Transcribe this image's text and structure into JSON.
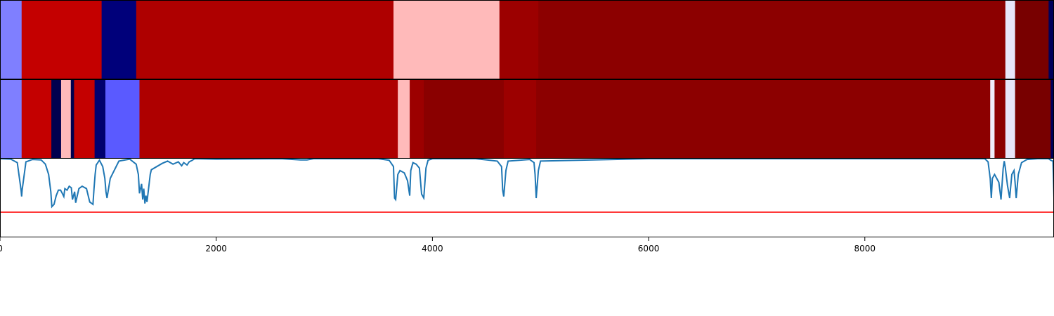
{
  "chart_data": {
    "type": "heatmap",
    "title": "",
    "xlabel": "",
    "ylabel": "",
    "xlim": [
      0,
      9750
    ],
    "xticks": [
      {
        "value": 0,
        "label": "0"
      },
      {
        "value": 2000,
        "label": "2000"
      },
      {
        "value": 4000,
        "label": "4000"
      },
      {
        "value": 6000,
        "label": "6000"
      },
      {
        "value": 8000,
        "label": "8000"
      }
    ],
    "colormap": "seismic",
    "band_1": [
      {
        "start": 0,
        "end": 200,
        "color": "#7f7fff"
      },
      {
        "start": 200,
        "end": 940,
        "color": "#c40000"
      },
      {
        "start": 940,
        "end": 1260,
        "color": "#00007a"
      },
      {
        "start": 1260,
        "end": 3640,
        "color": "#ae0000"
      },
      {
        "start": 3640,
        "end": 4620,
        "color": "#ffbaba"
      },
      {
        "start": 4620,
        "end": 4980,
        "color": "#9c0000"
      },
      {
        "start": 4980,
        "end": 9300,
        "color": "#8c0000"
      },
      {
        "start": 9300,
        "end": 9390,
        "color": "#e8e6fa"
      },
      {
        "start": 9390,
        "end": 9700,
        "color": "#780000"
      },
      {
        "start": 9700,
        "end": 9750,
        "color": "#00005a"
      }
    ],
    "band_2": [
      {
        "start": 0,
        "end": 200,
        "color": "#7f7fff"
      },
      {
        "start": 200,
        "end": 475,
        "color": "#c40000"
      },
      {
        "start": 475,
        "end": 565,
        "color": "#00004e"
      },
      {
        "start": 565,
        "end": 655,
        "color": "#ffbaba"
      },
      {
        "start": 655,
        "end": 685,
        "color": "#00004e"
      },
      {
        "start": 685,
        "end": 875,
        "color": "#c40000"
      },
      {
        "start": 875,
        "end": 975,
        "color": "#00006e"
      },
      {
        "start": 975,
        "end": 1290,
        "color": "#5a5aff"
      },
      {
        "start": 1290,
        "end": 3680,
        "color": "#ae0000"
      },
      {
        "start": 3680,
        "end": 3790,
        "color": "#ffbaba"
      },
      {
        "start": 3790,
        "end": 3920,
        "color": "#9c0000"
      },
      {
        "start": 3920,
        "end": 4660,
        "color": "#8a0000"
      },
      {
        "start": 4660,
        "end": 4960,
        "color": "#9c0000"
      },
      {
        "start": 4960,
        "end": 9160,
        "color": "#8c0000"
      },
      {
        "start": 9160,
        "end": 9200,
        "color": "#f0eefa"
      },
      {
        "start": 9200,
        "end": 9300,
        "color": "#8c0000"
      },
      {
        "start": 9300,
        "end": 9390,
        "color": "#e8e6fa"
      },
      {
        "start": 9390,
        "end": 9720,
        "color": "#780000"
      },
      {
        "start": 9720,
        "end": 9750,
        "color": "#00005a"
      }
    ],
    "line_series": {
      "color": "#1f77b4",
      "ylim": [
        0,
        1
      ],
      "x": [
        0,
        100,
        160,
        195,
        200,
        205,
        240,
        300,
        380,
        420,
        450,
        470,
        480,
        500,
        520,
        540,
        560,
        580,
        590,
        600,
        620,
        640,
        660,
        670,
        690,
        700,
        710,
        730,
        760,
        800,
        830,
        860,
        870,
        880,
        890,
        920,
        950,
        970,
        980,
        990,
        1020,
        1100,
        1200,
        1260,
        1280,
        1290,
        1310,
        1320,
        1330,
        1340,
        1350,
        1360,
        1390,
        1400,
        1500,
        1550,
        1600,
        1650,
        1680,
        1700,
        1730,
        1750,
        1780,
        1800,
        2000,
        2600,
        2780,
        2840,
        2900,
        3000,
        3500,
        3600,
        3640,
        3650,
        3660,
        3680,
        3700,
        3740,
        3770,
        3790,
        3800,
        3820,
        3850,
        3880,
        3900,
        3920,
        3940,
        3960,
        4000,
        4400,
        4600,
        4640,
        4650,
        4660,
        4680,
        4700,
        4900,
        4940,
        4950,
        4960,
        4980,
        5000,
        6000,
        7000,
        8000,
        9000,
        9110,
        9140,
        9160,
        9170,
        9180,
        9200,
        9240,
        9260,
        9280,
        9290,
        9300,
        9320,
        9340,
        9360,
        9380,
        9390,
        9400,
        9420,
        9450,
        9500,
        9600,
        9700,
        9720,
        9740,
        9750
      ],
      "y": [
        1.0,
        0.995,
        0.95,
        0.6,
        0.52,
        0.6,
        0.96,
        0.99,
        0.985,
        0.93,
        0.8,
        0.58,
        0.39,
        0.42,
        0.53,
        0.6,
        0.6,
        0.55,
        0.52,
        0.62,
        0.6,
        0.65,
        0.63,
        0.48,
        0.58,
        0.44,
        0.5,
        0.62,
        0.65,
        0.62,
        0.45,
        0.42,
        0.62,
        0.8,
        0.92,
        0.98,
        0.9,
        0.75,
        0.58,
        0.5,
        0.75,
        0.97,
        0.995,
        0.93,
        0.8,
        0.56,
        0.68,
        0.48,
        0.62,
        0.43,
        0.53,
        0.45,
        0.8,
        0.86,
        0.94,
        0.97,
        0.93,
        0.96,
        0.91,
        0.95,
        0.92,
        0.96,
        0.98,
        1.0,
        0.995,
        1.0,
        0.985,
        0.985,
        1.0,
        1.0,
        1.0,
        0.98,
        0.9,
        0.5,
        0.48,
        0.8,
        0.85,
        0.82,
        0.72,
        0.53,
        0.85,
        0.95,
        0.93,
        0.88,
        0.55,
        0.5,
        0.88,
        0.98,
        1.0,
        1.0,
        0.97,
        0.9,
        0.6,
        0.52,
        0.85,
        0.97,
        0.99,
        0.95,
        0.8,
        0.5,
        0.85,
        0.97,
        1.0,
        1.0,
        1.0,
        1.0,
        1.0,
        0.96,
        0.75,
        0.5,
        0.75,
        0.8,
        0.7,
        0.48,
        0.88,
        0.97,
        0.88,
        0.66,
        0.5,
        0.8,
        0.85,
        0.7,
        0.5,
        0.8,
        0.95,
        0.99,
        1.0,
        1.0,
        0.98,
        0.97,
        0.5,
        0.95,
        1.0
      ]
    },
    "threshold": {
      "value": 0.32,
      "color": "#ff0000"
    },
    "grid": false,
    "legend": "none"
  }
}
